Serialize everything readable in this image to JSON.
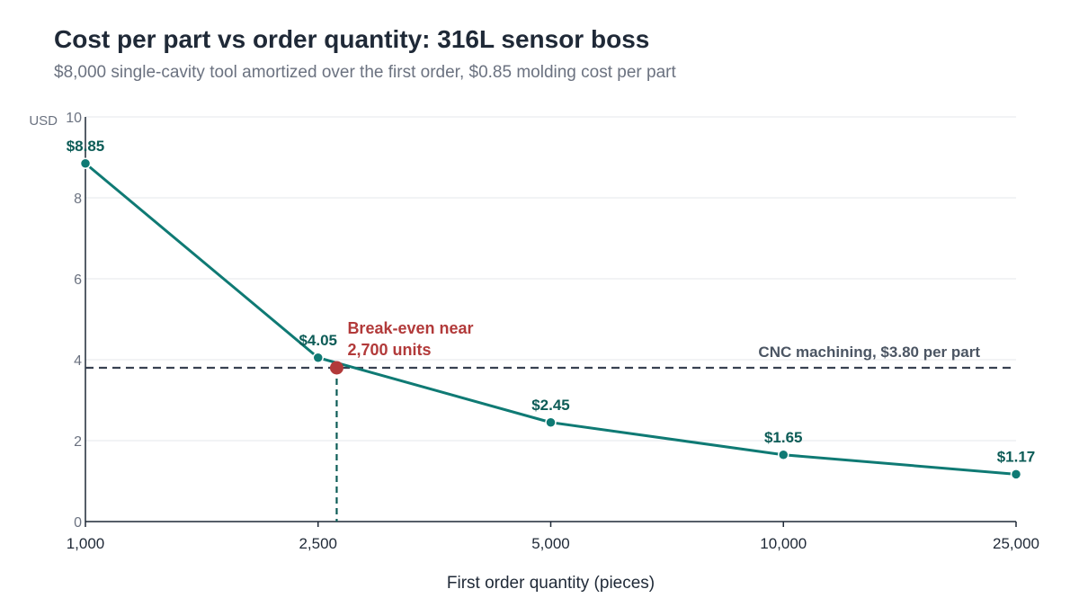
{
  "title": "Cost per part vs order quantity: 316L sensor boss",
  "subtitle": "$8,000 single-cavity tool amortized over the first order, $0.85 molding cost per part",
  "colors": {
    "series": "#0f7a74",
    "series_label": "#0d5c57",
    "reference": "#374151",
    "reference_label": "#4b5563",
    "breakeven": "#b23a3a",
    "axis": "#1f2937",
    "grid": "#e5e7eb"
  },
  "chart_data": {
    "type": "line",
    "title": "Cost per part vs order quantity: 316L sensor boss",
    "subtitle": "$8,000 single-cavity tool amortized over the first order, $0.85 molding cost per part",
    "xlabel": "First order quantity (pieces)",
    "ylabel": "USD",
    "x_scale": "categorical",
    "categories": [
      "1,000",
      "2,500",
      "5,000",
      "10,000",
      "25,000"
    ],
    "ylim": [
      0,
      10
    ],
    "yticks": [
      0,
      2,
      4,
      6,
      8,
      10
    ],
    "grid": "horizontal",
    "series": [
      {
        "values": [
          8.85,
          4.05,
          2.45,
          1.65,
          1.17
        ],
        "labels": [
          "$8.85",
          "$4.05",
          "$2.45",
          "$1.65",
          "$1.17"
        ]
      }
    ],
    "reference_line": {
      "y": 3.8,
      "label": "CNC machining, $3.80 per part"
    },
    "annotation": {
      "x_quantity": 2700,
      "y": 3.8,
      "lines": [
        "Break-even near",
        "2,700 units"
      ]
    }
  }
}
